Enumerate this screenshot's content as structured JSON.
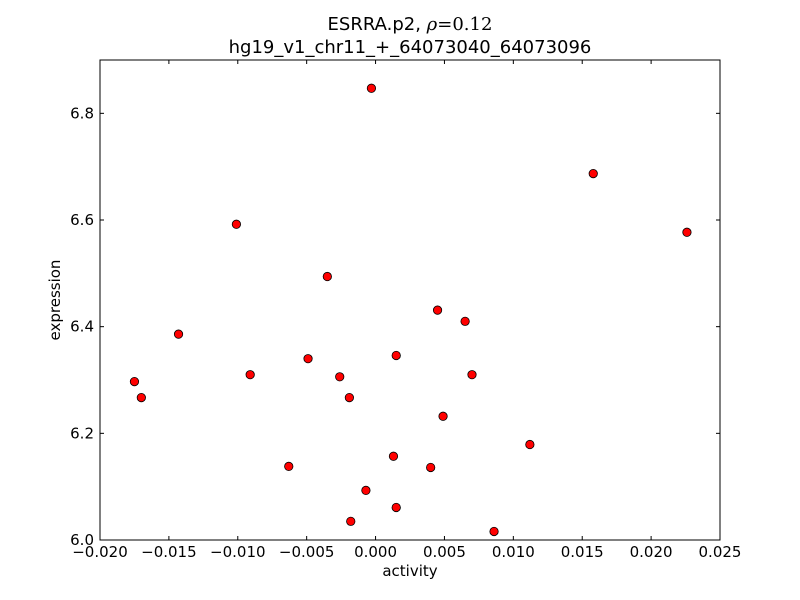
{
  "chart_data": {
    "type": "scatter",
    "title": {
      "line1_prefix": "ESRRA.p2, ",
      "line1_symbol": "ρ",
      "line1_value": "=0.12",
      "line2": "hg19_v1_chr11_+_64073040_64073096"
    },
    "xlabel": "activity",
    "ylabel": "expression",
    "xlim": [
      -0.02,
      0.025
    ],
    "ylim": [
      6.0,
      6.9
    ],
    "xticks": [
      {
        "value": -0.02,
        "label": "−0.020"
      },
      {
        "value": -0.015,
        "label": "−0.015"
      },
      {
        "value": -0.01,
        "label": "−0.010"
      },
      {
        "value": -0.005,
        "label": "−0.005"
      },
      {
        "value": 0.0,
        "label": "0.000"
      },
      {
        "value": 0.005,
        "label": "0.005"
      },
      {
        "value": 0.01,
        "label": "0.010"
      },
      {
        "value": 0.015,
        "label": "0.015"
      },
      {
        "value": 0.02,
        "label": "0.020"
      },
      {
        "value": 0.025,
        "label": "0.025"
      }
    ],
    "yticks": [
      {
        "value": 6.0,
        "label": "6.0"
      },
      {
        "value": 6.2,
        "label": "6.2"
      },
      {
        "value": 6.4,
        "label": "6.4"
      },
      {
        "value": 6.6,
        "label": "6.6"
      },
      {
        "value": 6.8,
        "label": "6.8"
      }
    ],
    "grid": false,
    "marker_color": "#ff0000",
    "marker_edge_color": "#000000",
    "points": [
      {
        "x": -0.0003,
        "y": 6.847
      },
      {
        "x": 0.0158,
        "y": 6.687
      },
      {
        "x": 0.0226,
        "y": 6.577
      },
      {
        "x": -0.0101,
        "y": 6.592
      },
      {
        "x": -0.0035,
        "y": 6.494
      },
      {
        "x": 0.0045,
        "y": 6.431
      },
      {
        "x": 0.0065,
        "y": 6.41
      },
      {
        "x": -0.0143,
        "y": 6.386
      },
      {
        "x": -0.0049,
        "y": 6.34
      },
      {
        "x": 0.0015,
        "y": 6.346
      },
      {
        "x": -0.0175,
        "y": 6.297
      },
      {
        "x": -0.0091,
        "y": 6.31
      },
      {
        "x": -0.0026,
        "y": 6.306
      },
      {
        "x": 0.007,
        "y": 6.31
      },
      {
        "x": -0.017,
        "y": 6.267
      },
      {
        "x": -0.0019,
        "y": 6.267
      },
      {
        "x": 0.0049,
        "y": 6.232
      },
      {
        "x": 0.0112,
        "y": 6.179
      },
      {
        "x": 0.0013,
        "y": 6.157
      },
      {
        "x": -0.0063,
        "y": 6.138
      },
      {
        "x": 0.004,
        "y": 6.136
      },
      {
        "x": -0.0007,
        "y": 6.093
      },
      {
        "x": 0.0015,
        "y": 6.061
      },
      {
        "x": -0.0018,
        "y": 6.035
      },
      {
        "x": 0.0086,
        "y": 6.016
      }
    ]
  }
}
